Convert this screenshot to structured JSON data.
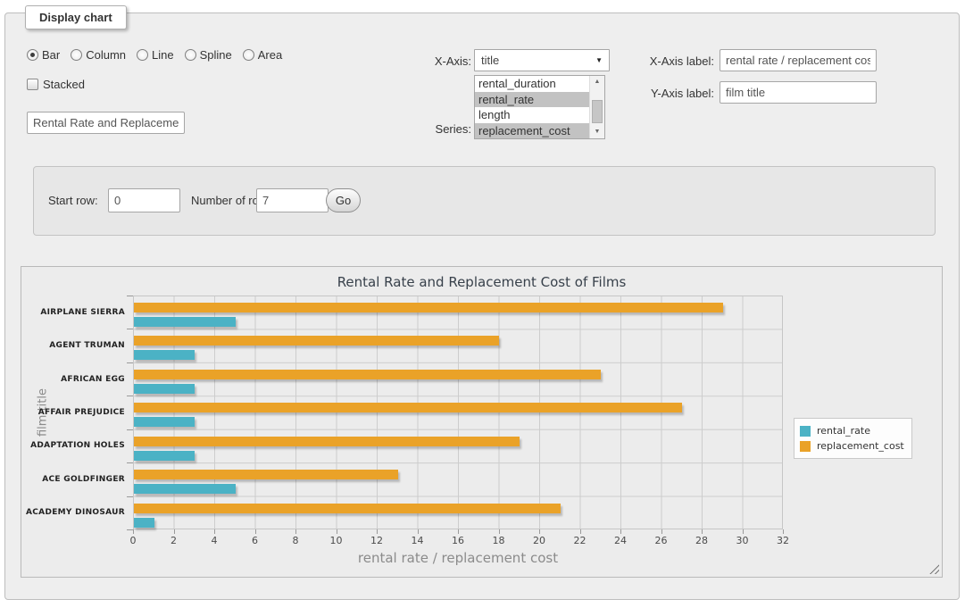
{
  "panel": {
    "legend": "Display chart"
  },
  "chart_types": {
    "options": [
      "Bar",
      "Column",
      "Line",
      "Spline",
      "Area"
    ],
    "selected": "Bar"
  },
  "stacked": {
    "label": "Stacked",
    "checked": false
  },
  "title_input": {
    "value": "Rental Rate and Replacement Cost of Films"
  },
  "x_axis": {
    "label": "X-Axis:",
    "selected": "title"
  },
  "series_select": {
    "label": "Series:",
    "options": [
      {
        "label": "rental_duration",
        "selected": false
      },
      {
        "label": "rental_rate",
        "selected": true
      },
      {
        "label": "length",
        "selected": false
      },
      {
        "label": "replacement_cost",
        "selected": true
      }
    ]
  },
  "x_axis_label": {
    "label": "X-Axis label:",
    "value": "rental rate / replacement cost"
  },
  "y_axis_label": {
    "label": "Y-Axis label:",
    "value": "film title"
  },
  "rows_form": {
    "start_row_label": "Start row:",
    "start_row_value": "0",
    "num_rows_label": "Number of rows:",
    "num_rows_value": "7",
    "go_label": "Go"
  },
  "chart_data": {
    "type": "bar",
    "orientation": "horizontal",
    "title": "Rental Rate and Replacement Cost of Films",
    "xlabel": "rental rate / replacement cost",
    "ylabel": "film title",
    "xlim": [
      0,
      32
    ],
    "xticks": [
      0,
      2,
      4,
      6,
      8,
      10,
      12,
      14,
      16,
      18,
      20,
      22,
      24,
      26,
      28,
      30,
      32
    ],
    "grid": true,
    "legend_position": "right",
    "categories": [
      "AIRPLANE SIERRA",
      "AGENT TRUMAN",
      "AFRICAN EGG",
      "AFFAIR PREJUDICE",
      "ADAPTATION HOLES",
      "ACE GOLDFINGER",
      "ACADEMY DINOSAUR"
    ],
    "series": [
      {
        "name": "rental_rate",
        "color": "#4bb2c5",
        "values": [
          4.99,
          2.99,
          2.99,
          2.99,
          2.99,
          4.99,
          0.99
        ]
      },
      {
        "name": "replacement_cost",
        "color": "#eaa228",
        "values": [
          28.99,
          17.99,
          22.99,
          26.99,
          18.99,
          12.99,
          20.99
        ]
      }
    ],
    "bar_order_top_to_bottom": [
      "replacement_cost",
      "rental_rate"
    ]
  }
}
